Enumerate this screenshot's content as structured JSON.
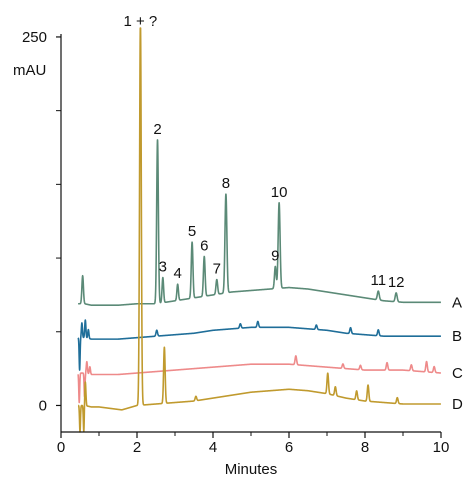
{
  "chart_data": {
    "type": "line",
    "xlabel": "Minutes",
    "ylabel": "mAU",
    "xlim": [
      0,
      10
    ],
    "ylim": [
      -18,
      252
    ],
    "x_ticks": [
      "0",
      "2",
      "4",
      "6",
      "8",
      "10"
    ],
    "x_tick_values": [
      0,
      2,
      4,
      6,
      8,
      10
    ],
    "y_tick_labels": [
      {
        "value": 0,
        "label": "0"
      },
      {
        "value": 250,
        "label": "250"
      }
    ],
    "y_minor_ticks": [
      50,
      100,
      150,
      200
    ],
    "grid": false,
    "series": [
      {
        "name": "A",
        "color": "#5b8a77",
        "baseline": 69,
        "drift": [
          [
            0.45,
            0
          ],
          [
            0.55,
            0
          ],
          [
            0.62,
            0
          ],
          [
            0.8,
            -1
          ],
          [
            1.0,
            -1
          ],
          [
            1.5,
            -1
          ],
          [
            2.0,
            0
          ],
          [
            2.5,
            0
          ],
          [
            3.0,
            2
          ],
          [
            3.5,
            4
          ],
          [
            4.0,
            6
          ],
          [
            4.5,
            8
          ],
          [
            5.0,
            9
          ],
          [
            5.5,
            10
          ],
          [
            6.0,
            11
          ],
          [
            6.5,
            10
          ],
          [
            7.0,
            8
          ],
          [
            7.5,
            6
          ],
          [
            8.0,
            4
          ],
          [
            8.5,
            2
          ],
          [
            9.0,
            1
          ],
          [
            9.5,
            1
          ],
          [
            10.0,
            1
          ]
        ],
        "peaks": [
          {
            "x": 0.57,
            "h": 19,
            "w": 0.02,
            "label": ""
          },
          {
            "x": 2.54,
            "h": 111,
            "w": 0.022,
            "label": "2"
          },
          {
            "x": 2.68,
            "h": 17,
            "w": 0.02,
            "label": "3"
          },
          {
            "x": 3.07,
            "h": 11,
            "w": 0.02,
            "label": "4"
          },
          {
            "x": 3.45,
            "h": 38,
            "w": 0.022,
            "label": "5"
          },
          {
            "x": 3.77,
            "h": 27,
            "w": 0.022,
            "label": "6"
          },
          {
            "x": 4.1,
            "h": 10,
            "w": 0.022,
            "label": "7"
          },
          {
            "x": 4.34,
            "h": 67,
            "w": 0.025,
            "label": "8"
          },
          {
            "x": 5.64,
            "h": 15,
            "w": 0.022,
            "label": "9"
          },
          {
            "x": 5.74,
            "h": 58,
            "w": 0.025,
            "label": "10"
          },
          {
            "x": 8.35,
            "h": 6,
            "w": 0.025,
            "label": "11"
          },
          {
            "x": 8.82,
            "h": 6,
            "w": 0.025,
            "label": "12"
          }
        ]
      },
      {
        "name": "B",
        "color": "#1f6e99",
        "baseline": 46,
        "drift": [
          [
            0.45,
            0
          ],
          [
            0.55,
            0
          ],
          [
            0.62,
            0
          ],
          [
            0.8,
            -1
          ],
          [
            1.0,
            -1
          ],
          [
            1.5,
            -1
          ],
          [
            2.0,
            0
          ],
          [
            2.5,
            1
          ],
          [
            3.0,
            2
          ],
          [
            3.5,
            3
          ],
          [
            4.0,
            5
          ],
          [
            4.5,
            6
          ],
          [
            5.0,
            7
          ],
          [
            5.5,
            7
          ],
          [
            6.0,
            7
          ],
          [
            6.5,
            6
          ],
          [
            7.0,
            5
          ],
          [
            7.5,
            3
          ],
          [
            8.0,
            2
          ],
          [
            8.5,
            1
          ],
          [
            9.0,
            1
          ],
          [
            9.5,
            1
          ],
          [
            10.0,
            1
          ]
        ],
        "peaks": [
          {
            "x": 0.49,
            "h": -22,
            "w": 0.012,
            "label": ""
          },
          {
            "x": 0.55,
            "h": 10,
            "w": 0.014,
            "label": ""
          },
          {
            "x": 0.64,
            "h": 12,
            "w": 0.015,
            "label": ""
          },
          {
            "x": 0.72,
            "h": 6,
            "w": 0.015,
            "label": ""
          },
          {
            "x": 2.52,
            "h": 4,
            "w": 0.02,
            "label": ""
          },
          {
            "x": 4.72,
            "h": 3,
            "w": 0.02,
            "label": ""
          },
          {
            "x": 5.18,
            "h": 4,
            "w": 0.02,
            "label": ""
          },
          {
            "x": 6.72,
            "h": 3,
            "w": 0.02,
            "label": ""
          },
          {
            "x": 7.62,
            "h": 4,
            "w": 0.02,
            "label": ""
          },
          {
            "x": 8.35,
            "h": 4,
            "w": 0.02,
            "label": ""
          }
        ]
      },
      {
        "name": "C",
        "color": "#ee8a8a",
        "baseline": 22,
        "drift": [
          [
            0.45,
            0
          ],
          [
            0.55,
            0
          ],
          [
            0.62,
            0
          ],
          [
            0.8,
            -1
          ],
          [
            1.0,
            -1
          ],
          [
            1.5,
            -1
          ],
          [
            2.0,
            0
          ],
          [
            2.5,
            1
          ],
          [
            3.0,
            2
          ],
          [
            3.5,
            3
          ],
          [
            4.0,
            4
          ],
          [
            4.5,
            5
          ],
          [
            5.0,
            6
          ],
          [
            5.5,
            6
          ],
          [
            6.0,
            6
          ],
          [
            6.5,
            5
          ],
          [
            7.0,
            4
          ],
          [
            7.5,
            3
          ],
          [
            8.0,
            2
          ],
          [
            8.5,
            2
          ],
          [
            9.0,
            2
          ],
          [
            9.5,
            1
          ],
          [
            10.0,
            0
          ]
        ],
        "peaks": [
          {
            "x": 0.48,
            "h": -20,
            "w": 0.012,
            "label": ""
          },
          {
            "x": 0.62,
            "h": -16,
            "w": 0.012,
            "label": ""
          },
          {
            "x": 0.68,
            "h": 8,
            "w": 0.015,
            "label": ""
          },
          {
            "x": 0.76,
            "h": 5,
            "w": 0.015,
            "label": ""
          },
          {
            "x": 6.18,
            "h": 6,
            "w": 0.02,
            "label": ""
          },
          {
            "x": 7.42,
            "h": 3,
            "w": 0.02,
            "label": ""
          },
          {
            "x": 7.88,
            "h": 3,
            "w": 0.02,
            "label": ""
          },
          {
            "x": 8.58,
            "h": 5,
            "w": 0.02,
            "label": ""
          },
          {
            "x": 9.22,
            "h": 4,
            "w": 0.02,
            "label": ""
          },
          {
            "x": 9.62,
            "h": 7,
            "w": 0.02,
            "label": ""
          },
          {
            "x": 9.82,
            "h": 4,
            "w": 0.02,
            "label": ""
          }
        ]
      },
      {
        "name": "D",
        "color": "#c09a2e",
        "baseline": 0,
        "drift": [
          [
            0.45,
            0
          ],
          [
            0.55,
            0
          ],
          [
            0.62,
            0
          ],
          [
            0.8,
            -1
          ],
          [
            1.0,
            -1
          ],
          [
            1.3,
            -2
          ],
          [
            1.6,
            -3
          ],
          [
            2.0,
            0
          ],
          [
            2.5,
            1
          ],
          [
            3.0,
            2
          ],
          [
            3.5,
            3
          ],
          [
            4.0,
            5
          ],
          [
            4.5,
            7
          ],
          [
            5.0,
            9
          ],
          [
            5.5,
            10
          ],
          [
            6.0,
            11
          ],
          [
            6.5,
            10
          ],
          [
            7.0,
            8
          ],
          [
            7.5,
            5
          ],
          [
            8.0,
            3
          ],
          [
            8.5,
            2
          ],
          [
            9.0,
            1
          ],
          [
            9.5,
            1
          ],
          [
            10.0,
            1
          ]
        ],
        "peaks": [
          {
            "x": 0.5,
            "h": -18,
            "w": 0.012,
            "label": ""
          },
          {
            "x": 0.6,
            "h": -18,
            "w": 0.012,
            "label": ""
          },
          {
            "x": 0.64,
            "h": 16,
            "w": 0.015,
            "label": ""
          },
          {
            "x": 2.09,
            "h": 262,
            "w": 0.022,
            "label": "1 + ?"
          },
          {
            "x": 2.72,
            "h": 38,
            "w": 0.02,
            "label": ""
          },
          {
            "x": 3.55,
            "h": 3,
            "w": 0.02,
            "label": ""
          },
          {
            "x": 7.02,
            "h": 14,
            "w": 0.02,
            "label": ""
          },
          {
            "x": 7.22,
            "h": 6,
            "w": 0.02,
            "label": ""
          },
          {
            "x": 7.78,
            "h": 6,
            "w": 0.02,
            "label": ""
          },
          {
            "x": 8.08,
            "h": 11,
            "w": 0.02,
            "label": ""
          },
          {
            "x": 8.85,
            "h": 4,
            "w": 0.02,
            "label": ""
          }
        ]
      }
    ]
  }
}
